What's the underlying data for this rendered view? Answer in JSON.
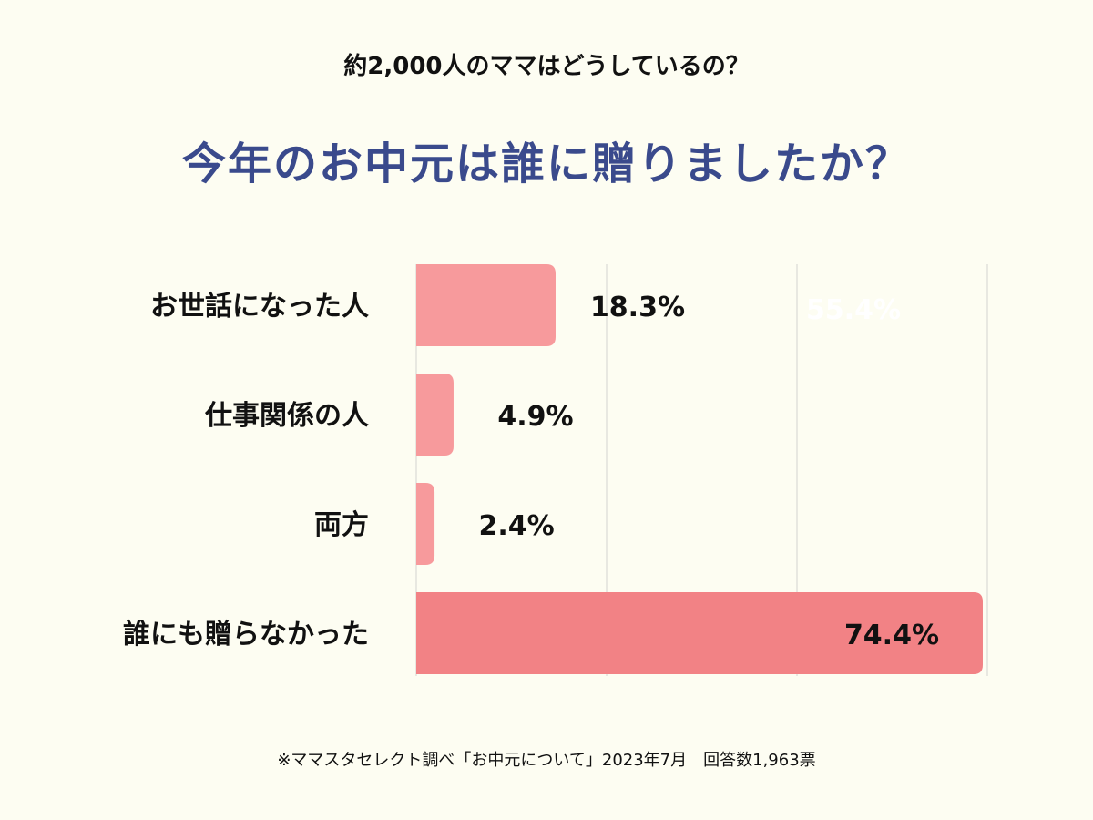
{
  "header": {
    "subtitle": "約2,000人のママはどうしているの？",
    "title": "今年のお中元は誰に贈りましたか？"
  },
  "chart_data": {
    "type": "bar",
    "orientation": "horizontal",
    "categories": [
      "お世話になった人",
      "仕事関係の人",
      "両方",
      "誰にも贈らなかった"
    ],
    "values": [
      18.3,
      4.9,
      2.4,
      74.4
    ],
    "value_labels": [
      "18.3%",
      "4.9%",
      "2.4%",
      "74.4%"
    ],
    "ghost_label": "55.4%",
    "xlim": [
      0,
      75
    ],
    "grid": true,
    "bar_color": "#f79a9c",
    "highlight_color": "#f28285"
  },
  "footer": {
    "note": "※ママスタセレクト調べ「お中元について」2023年7月　回答数1,963票"
  }
}
